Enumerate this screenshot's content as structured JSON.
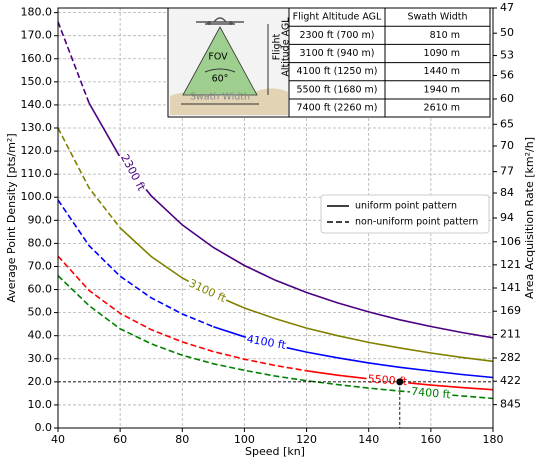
{
  "chart_data": {
    "type": "line",
    "x_label": "Speed [kn]",
    "y_label": "Average Point Density [pts/m²]",
    "y2_label": "Area Acquisition Rate [km²/h]",
    "x": [
      40,
      50,
      60,
      70,
      80,
      90,
      100,
      110,
      120,
      130,
      140,
      150,
      160,
      170,
      180
    ],
    "xlim": [
      40,
      180
    ],
    "xticks": [
      40,
      60,
      80,
      100,
      120,
      140,
      160,
      180
    ],
    "ylim": [
      0,
      182
    ],
    "yticks": [
      {
        "value": 0,
        "label": "0.0"
      },
      {
        "value": 10,
        "label": "10.0"
      },
      {
        "value": 20,
        "label": "20.0"
      },
      {
        "value": 30,
        "label": "30.0"
      },
      {
        "value": 40,
        "label": "40.0"
      },
      {
        "value": 50,
        "label": "50.0"
      },
      {
        "value": 60,
        "label": "60.0"
      },
      {
        "value": 70,
        "label": "70.0"
      },
      {
        "value": 80,
        "label": "80.0"
      },
      {
        "value": 90,
        "label": "90.0"
      },
      {
        "value": 100,
        "label": "100.0"
      },
      {
        "value": 110,
        "label": "110.0"
      },
      {
        "value": 120,
        "label": "120.0"
      },
      {
        "value": 130,
        "label": "130.0"
      },
      {
        "value": 140,
        "label": "140.0"
      },
      {
        "value": 150,
        "label": "150.0"
      },
      {
        "value": 160,
        "label": "160.0"
      },
      {
        "value": 170,
        "label": "170.0"
      },
      {
        "value": 180,
        "label": "180.0"
      }
    ],
    "y2scale": "reciprocal",
    "y2lim": [
      null,
      47
    ],
    "y2ticks": [
      845,
      422,
      282,
      211,
      169,
      141,
      121,
      106,
      94,
      84,
      77,
      70,
      65,
      60,
      56,
      53,
      50,
      47
    ],
    "grid": true,
    "series": [
      {
        "name": "2300 ft",
        "color": "#4b0082",
        "nonuniform_values": [
          176,
          140.8,
          null,
          null,
          null,
          null,
          null,
          null,
          null,
          null,
          null,
          null,
          null,
          null,
          null
        ],
        "uniform_values": [
          null,
          140.8,
          117.3,
          100.6,
          88,
          78.2,
          70.4,
          64,
          58.7,
          54.2,
          50.3,
          46.9,
          44,
          41.4,
          39.1
        ]
      },
      {
        "name": "3100 ft",
        "color": "#808000",
        "nonuniform_values": [
          130,
          104,
          86.7,
          null,
          null,
          null,
          null,
          null,
          null,
          null,
          null,
          null,
          null,
          null,
          null
        ],
        "uniform_values": [
          null,
          null,
          86.7,
          74.3,
          65,
          57.8,
          52,
          47.3,
          43.3,
          40,
          37.1,
          34.7,
          32.5,
          30.6,
          28.9
        ]
      },
      {
        "name": "4100 ft",
        "color": "#0000ff",
        "nonuniform_values": [
          98.8,
          79,
          65.8,
          56.4,
          49.4,
          43.9,
          null,
          null,
          null,
          null,
          null,
          null,
          null,
          null,
          null
        ],
        "uniform_values": [
          null,
          null,
          null,
          null,
          null,
          43.9,
          39.5,
          35.9,
          32.9,
          30.4,
          28.2,
          26.3,
          24.7,
          23.2,
          21.9
        ]
      },
      {
        "name": "5500 ft",
        "color": "#ff0000",
        "nonuniform_values": [
          74.5,
          59.6,
          49.7,
          42.6,
          37.3,
          33.1,
          29.8,
          27.1,
          24.8,
          null,
          null,
          null,
          null,
          null,
          null
        ],
        "uniform_values": [
          null,
          null,
          null,
          null,
          null,
          null,
          null,
          null,
          24.8,
          22.9,
          21.3,
          19.9,
          18.6,
          17.5,
          16.6
        ]
      },
      {
        "name": "7400 ft",
        "color": "#008000",
        "nonuniform_values": [
          66,
          53,
          43,
          36.5,
          31.5,
          27.8,
          25,
          22.5,
          20.5,
          18.8,
          17.3,
          16,
          14.9,
          13.9,
          12.8
        ]
      }
    ],
    "legend": [
      {
        "label": "uniform point pattern",
        "dashed": false
      },
      {
        "label": "non-uniform point pattern",
        "dashed": true
      }
    ],
    "legend_position": "right",
    "marker": {
      "x": 150,
      "y": 20
    },
    "inset": {
      "diagram": {
        "fov": "FOV",
        "angle": "60°",
        "swath": "Swath Width",
        "altitude": [
          "Flight",
          "Altitude AGL"
        ]
      },
      "table": {
        "header": [
          "Flight Altitude AGL",
          "Swath Width"
        ],
        "rows": [
          [
            "2300 ft (700 m)",
            "810 m"
          ],
          [
            "3100 ft (940 m)",
            "1090 m"
          ],
          [
            "4100 ft (1250 m)",
            "1440 m"
          ],
          [
            "5500 ft (1680 m)",
            "1940 m"
          ],
          [
            "7400 ft (2260 m)",
            "2610 m"
          ]
        ]
      }
    }
  }
}
